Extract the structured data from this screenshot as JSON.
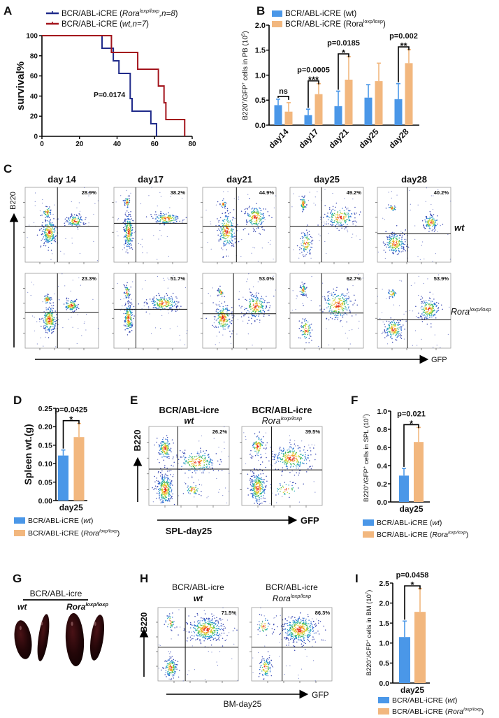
{
  "panels": [
    "A",
    "B",
    "C",
    "D",
    "E",
    "F",
    "G",
    "H",
    "I"
  ],
  "colors": {
    "wt_bar": "#4a97e8",
    "rora_bar": "#f2b77e",
    "km_rora": "#1f2a8a",
    "km_wt": "#a3141c"
  },
  "chart_data": [
    {
      "panel": "A",
      "type": "line",
      "subtype": "kaplan-meier step",
      "title": "",
      "xlabel": "",
      "ylabel": "survival%",
      "xlim": [
        0,
        80
      ],
      "ylim": [
        0,
        100
      ],
      "xticks": [
        "0",
        "20",
        "40",
        "60",
        "80"
      ],
      "yticks": [
        "0",
        "20",
        "40",
        "60",
        "80",
        "100"
      ],
      "annotation": "P=0.0174",
      "series": [
        {
          "name": [
            [
              "BCR/ABL-iCRE (",
              ""
            ],
            [
              "Rora",
              "i"
            ],
            [
              "loxp/loxp",
              "isup"
            ],
            [
              ",n=8",
              "i"
            ],
            [
              ")",
              ""
            ]
          ],
          "color": "#1f2a8a",
          "x": [
            0,
            32,
            38,
            41,
            47,
            48,
            58,
            61
          ],
          "y": [
            100,
            87.5,
            75,
            62.5,
            37.5,
            25,
            12.5,
            0
          ]
        },
        {
          "name": [
            [
              "BCR/ABL-iCRE (",
              ""
            ],
            [
              "wt,n=7",
              "i"
            ],
            [
              ")",
              ""
            ]
          ],
          "color": "#a3141c",
          "x": [
            0,
            37,
            51,
            62,
            65,
            66,
            76
          ],
          "y": [
            100,
            83.3,
            66.7,
            50,
            33.3,
            16.7,
            0
          ]
        }
      ]
    },
    {
      "panel": "B",
      "type": "bar",
      "title": "",
      "ylabel": [
        [
          "B220",
          ""
        ],
        [
          "+",
          "sup"
        ],
        [
          "/GFP",
          ""
        ],
        [
          "+",
          "sup"
        ],
        [
          " cells in PB (10",
          ""
        ],
        [
          "5",
          "sup"
        ],
        [
          ")",
          ""
        ]
      ],
      "ylim": [
        0,
        2.0
      ],
      "yticks": [
        "0.0",
        "0.5",
        "1.0",
        "1.5",
        "2.0"
      ],
      "categories": [
        "day14",
        "day17",
        "day21",
        "day25",
        "day28"
      ],
      "series": [
        {
          "name": [
            [
              "BCR/ABL-iCRE (wt)",
              ""
            ]
          ],
          "color": "#4a97e8",
          "values": [
            0.4,
            0.2,
            0.38,
            0.55,
            0.52
          ],
          "errors": [
            0.12,
            0.12,
            0.3,
            0.26,
            0.31
          ]
        },
        {
          "name": [
            [
              "BCR/ABL-iCRE (Rora",
              ""
            ],
            [
              "loxp/loxp",
              "sup"
            ],
            [
              ")",
              ""
            ]
          ],
          "color": "#f2b77e",
          "values": [
            0.27,
            0.62,
            0.91,
            0.88,
            1.24
          ],
          "errors": [
            0.18,
            0.21,
            0.46,
            0.36,
            0.27
          ]
        }
      ],
      "comparisons": [
        {
          "category": "day14",
          "p": "",
          "sig": "ns"
        },
        {
          "category": "day17",
          "p": "p=0.0005",
          "sig": "***"
        },
        {
          "category": "day21",
          "p": "p=0.0185",
          "sig": "*"
        },
        {
          "category": "day28",
          "p": "p=0.002",
          "sig": "**"
        }
      ]
    },
    {
      "panel": "D",
      "type": "bar",
      "ylabel": [
        [
          "Spleen wt.(g)",
          ""
        ]
      ],
      "ylim": [
        0,
        0.25
      ],
      "yticks": [
        "0.00",
        "0.05",
        "0.10",
        "0.15",
        "0.20",
        "0.25"
      ],
      "categories": [
        "day25"
      ],
      "series": [
        {
          "name": [
            [
              "BCR/ABL-iCRE (",
              ""
            ],
            [
              "wt",
              "i"
            ],
            [
              ")",
              ""
            ]
          ],
          "color": "#4a97e8",
          "values": [
            0.122
          ],
          "errors": [
            0.015
          ]
        },
        {
          "name": [
            [
              "BCR/ABL-iCRE (",
              ""
            ],
            [
              "Rora",
              "i"
            ],
            [
              "loxp/loxp",
              "isup"
            ],
            [
              ")",
              ""
            ]
          ],
          "color": "#f2b77e",
          "values": [
            0.172
          ],
          "errors": [
            0.037
          ]
        }
      ],
      "comparisons": [
        {
          "category": "day25",
          "p": "p=0.0425",
          "sig": "*"
        }
      ]
    },
    {
      "panel": "F",
      "type": "bar",
      "ylabel": [
        [
          "B220",
          ""
        ],
        [
          "+",
          "sup"
        ],
        [
          "/GFP",
          ""
        ],
        [
          "+",
          "sup"
        ],
        [
          " cells in SPL (10",
          ""
        ],
        [
          "7",
          "sup"
        ],
        [
          ")",
          ""
        ]
      ],
      "ylim": [
        0,
        1.0
      ],
      "yticks": [
        "0.0",
        "0.2",
        "0.4",
        "0.6",
        "0.8",
        "1.0"
      ],
      "categories": [
        "day25"
      ],
      "series": [
        {
          "name": [
            [
              "BCR/ABL-iCRE (",
              ""
            ],
            [
              "wt",
              "i"
            ],
            [
              ")",
              ""
            ]
          ],
          "color": "#4a97e8",
          "values": [
            0.29
          ],
          "errors": [
            0.08
          ]
        },
        {
          "name": [
            [
              "BCR/ABL-iCRE (",
              ""
            ],
            [
              "Rora",
              "i"
            ],
            [
              "loxp/loxp",
              "isup"
            ],
            [
              ")",
              ""
            ]
          ],
          "color": "#f2b77e",
          "values": [
            0.66
          ],
          "errors": [
            0.16
          ]
        }
      ],
      "comparisons": [
        {
          "category": "day25",
          "p": "p=0.021",
          "sig": "*"
        }
      ]
    },
    {
      "panel": "I",
      "type": "bar",
      "ylabel": [
        [
          "B220",
          ""
        ],
        [
          "+",
          "sup"
        ],
        [
          "/GFP",
          ""
        ],
        [
          "+",
          "sup"
        ],
        [
          " cells in BM (10",
          ""
        ],
        [
          "7",
          "sup"
        ],
        [
          ")",
          ""
        ]
      ],
      "ylim": [
        0,
        2.5
      ],
      "yticks": [
        "0.0",
        "0.5",
        "1.0",
        "1.5",
        "2.0",
        "2.5"
      ],
      "categories": [
        "day25"
      ],
      "series": [
        {
          "name": [
            [
              "BCR/ABL-iCRE (",
              ""
            ],
            [
              "wt",
              "i"
            ],
            [
              ")",
              ""
            ]
          ],
          "color": "#4a97e8",
          "values": [
            1.15
          ],
          "errors": [
            0.4
          ]
        },
        {
          "name": [
            [
              "BCR/ABL-iCRE (",
              ""
            ],
            [
              "Rora",
              "i"
            ],
            [
              "loxp/loxp",
              "isup"
            ],
            [
              ")",
              ""
            ]
          ],
          "color": "#f2b77e",
          "values": [
            1.78
          ],
          "errors": [
            0.58
          ]
        }
      ],
      "comparisons": [
        {
          "category": "day25",
          "p": "p=0.0458",
          "sig": "*"
        }
      ]
    }
  ],
  "flow_c": {
    "columns": [
      "day 14",
      "day17",
      "day21",
      "day25",
      "day28"
    ],
    "rows": [
      {
        "label": [
          [
            "wt",
            "i"
          ]
        ],
        "percentages": [
          "28.9%",
          "38.2%",
          "44.9%",
          "49.2%",
          "40.2%"
        ]
      },
      {
        "label": [
          [
            "Rora",
            "i"
          ],
          [
            "loxp/loxp",
            "isup"
          ]
        ],
        "percentages": [
          "23.3%",
          "51.7%",
          "53.0%",
          "62.7%",
          "53.9%"
        ]
      }
    ],
    "y_axis": "B220",
    "x_axis": "GFP"
  },
  "flow_e": {
    "plots": [
      {
        "title": "BCR/ABL-icre",
        "genotype": [
          [
            "wt",
            "i"
          ]
        ],
        "percentage": "26.2%"
      },
      {
        "title": "BCR/ABL-icre",
        "genotype": [
          [
            "Rora",
            "i"
          ],
          [
            "loxp/loxp",
            "isup"
          ]
        ],
        "percentage": "39.5%"
      }
    ],
    "y_axis": "B220",
    "x_axis": "GFP",
    "caption": "SPL-day25"
  },
  "photo_g": {
    "title": "BCR/ABL-icre",
    "groups": [
      [
        [
          "wt",
          "i"
        ]
      ],
      [
        [
          "Rora",
          "i"
        ],
        [
          "loxp/loxp",
          "isup"
        ]
      ]
    ]
  },
  "flow_h": {
    "plots": [
      {
        "title": "BCR/ABL-icre",
        "genotype": [
          [
            "wt",
            "i"
          ]
        ],
        "percentage": "71.5%"
      },
      {
        "title": "BCR/ABL-icre",
        "genotype": [
          [
            "Rora",
            "i"
          ],
          [
            "loxp/loxp",
            "isup"
          ]
        ],
        "percentage": "86.3%"
      }
    ],
    "y_axis": "B220",
    "x_axis": "GFP",
    "caption": "BM-day25"
  }
}
